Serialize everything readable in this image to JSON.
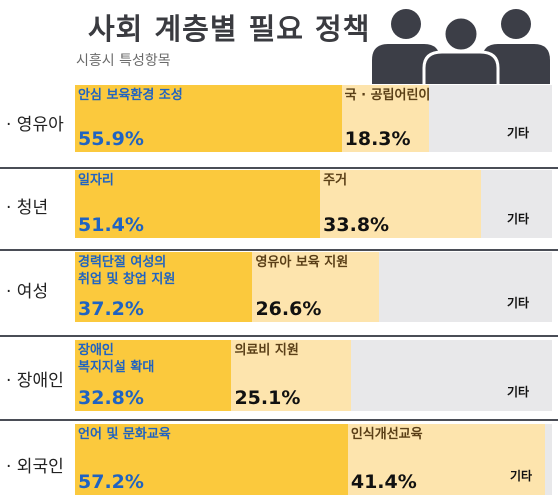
{
  "header": {
    "title": "사회 계층별 필요 정책",
    "subtitle": "시흥시 특성항목"
  },
  "icons": {
    "people": "people-group-icon"
  },
  "colors": {
    "top1": "#fbc93d",
    "top2": "#fde4ad",
    "other": "#e8e8ea",
    "accent_text": "#1f63c2"
  },
  "chart_data": {
    "type": "bar",
    "orientation": "horizontal-stacked",
    "categories": [
      "· 영유아",
      "· 청년",
      "· 여성",
      "· 장애인",
      "· 외국인"
    ],
    "rows": [
      {
        "label": "· 영유아",
        "segments": [
          {
            "name": "안심 보육환경 조성",
            "value": 55.9,
            "text": "55.9%"
          },
          {
            "name": "국 · 공립어린이집 설치 확대",
            "value": 18.3,
            "text": "18.3%"
          },
          {
            "name": "기타",
            "value": 25.8,
            "text": ""
          }
        ]
      },
      {
        "label": "· 청년",
        "segments": [
          {
            "name": "일자리",
            "value": 51.4,
            "text": "51.4%"
          },
          {
            "name": "주거",
            "value": 33.8,
            "text": "33.8%"
          },
          {
            "name": "기타",
            "value": 14.8,
            "text": ""
          }
        ]
      },
      {
        "label": "· 여성",
        "segments": [
          {
            "name": "경력단절 여성의\n취업 및 창업 지원",
            "value": 37.2,
            "text": "37.2%"
          },
          {
            "name": "영유아 보육 지원",
            "value": 26.6,
            "text": "26.6%"
          },
          {
            "name": "기타",
            "value": 36.2,
            "text": ""
          }
        ]
      },
      {
        "label": "· 장애인",
        "segments": [
          {
            "name": "장애인\n복지지설 확대",
            "value": 32.8,
            "text": "32.8%"
          },
          {
            "name": "의료비 지원",
            "value": 25.1,
            "text": "25.1%"
          },
          {
            "name": "기타",
            "value": 42.1,
            "text": ""
          }
        ]
      },
      {
        "label": "· 외국인",
        "segments": [
          {
            "name": "언어 및 문화교육",
            "value": 57.2,
            "text": "57.2%"
          },
          {
            "name": "인식개선교육",
            "value": 41.4,
            "text": "41.4%"
          },
          {
            "name": "기타",
            "value": 1.4,
            "text": ""
          }
        ]
      }
    ],
    "xlim": [
      0,
      100
    ],
    "grid": false,
    "legend": "none"
  }
}
